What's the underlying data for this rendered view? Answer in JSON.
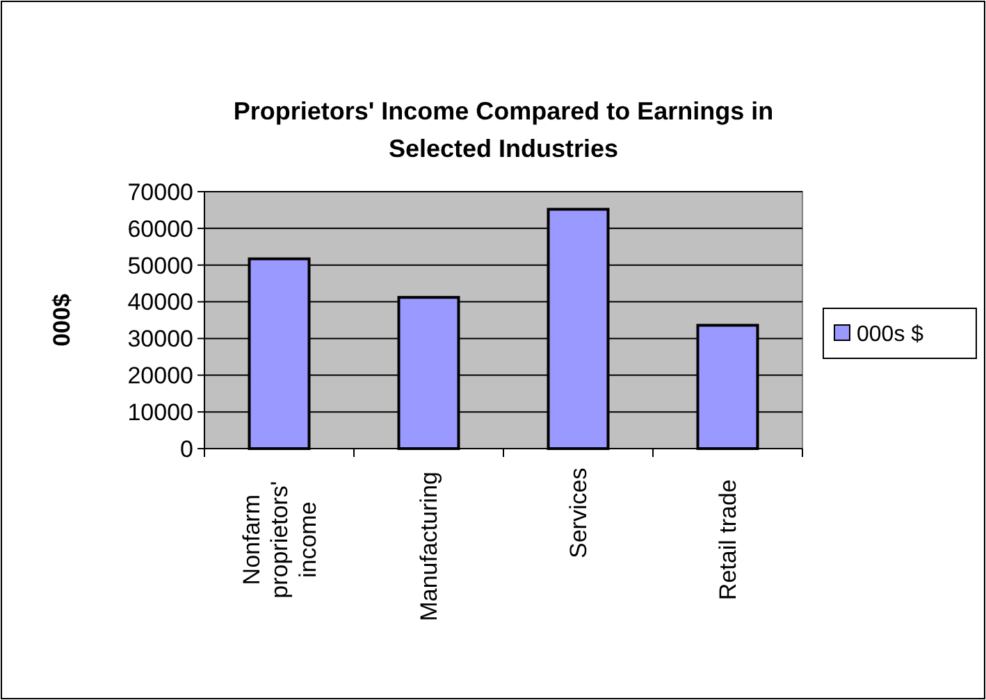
{
  "chart_data": {
    "type": "bar",
    "title": "Proprietors' Income Compared to Earnings in Selected Industries",
    "ylabel": "000$",
    "categories": [
      "Nonfarm proprietors' income",
      "Manufacturing",
      "Services",
      "Retail trade"
    ],
    "series": [
      {
        "name": "000s $",
        "color": "#9999ff",
        "values": [
          51700,
          41200,
          65200,
          33600
        ]
      }
    ],
    "ylim": [
      0,
      70000
    ],
    "yticks": [
      0,
      10000,
      20000,
      30000,
      40000,
      50000,
      60000,
      70000
    ],
    "grid": "y",
    "legend": "right"
  }
}
